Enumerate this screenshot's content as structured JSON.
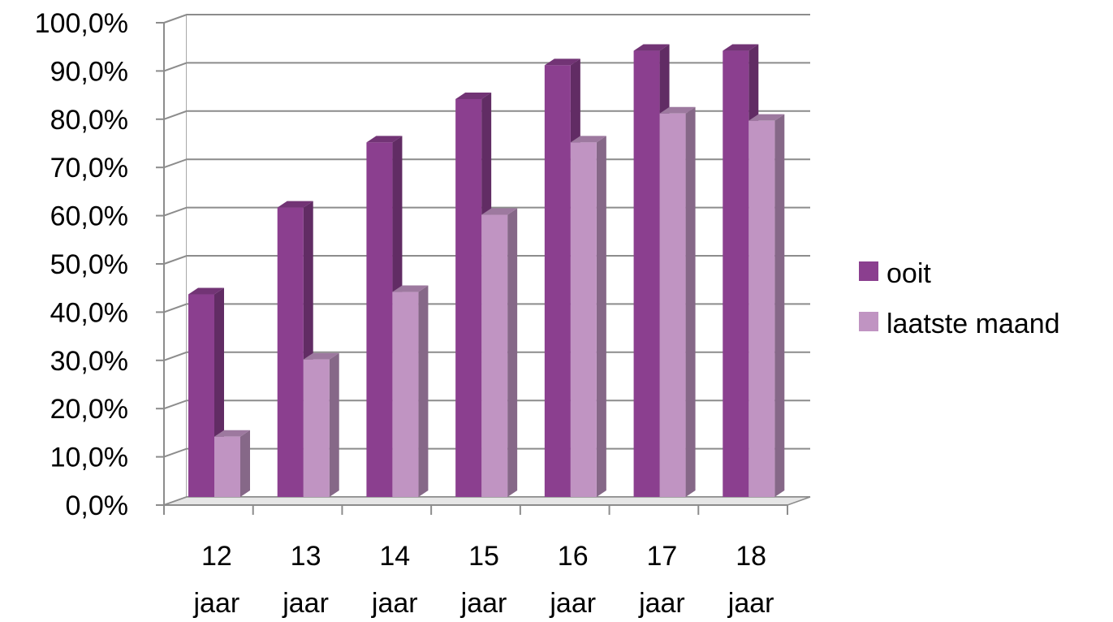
{
  "chart_data": {
    "type": "bar",
    "three_d": true,
    "categories": [
      [
        "12",
        "jaar"
      ],
      [
        "13",
        "jaar"
      ],
      [
        "14",
        "jaar"
      ],
      [
        "15",
        "jaar"
      ],
      [
        "16",
        "jaar"
      ],
      [
        "17",
        "jaar"
      ],
      [
        "18",
        "jaar"
      ]
    ],
    "series": [
      {
        "name": "ooit",
        "values": [
          42.0,
          60.0,
          73.5,
          82.5,
          89.5,
          92.5,
          92.5
        ],
        "color": "#8b3f8f"
      },
      {
        "name": "laatste maand",
        "values": [
          12.5,
          28.5,
          42.5,
          58.5,
          73.5,
          79.5,
          78.0
        ],
        "color": "#c094c2"
      }
    ],
    "ylim": [
      0,
      100
    ],
    "yticks": [
      "0,0%",
      "10,0%",
      "20,0%",
      "30,0%",
      "40,0%",
      "50,0%",
      "60,0%",
      "70,0%",
      "80,0%",
      "90,0%",
      "100,0%"
    ],
    "grid": true,
    "legend": "right"
  }
}
